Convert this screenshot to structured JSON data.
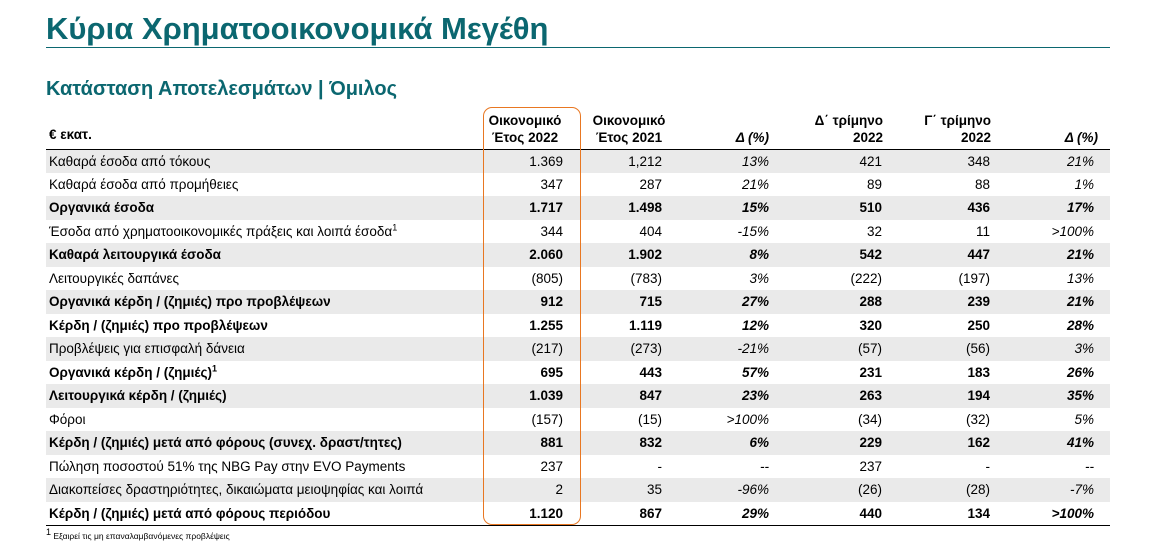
{
  "title": "Κύρια Χρηματοοικονομικά Μεγέθη",
  "subtitle": "Κατάσταση Αποτελεσμάτων | Όμιλος",
  "table": {
    "headers": {
      "label": "€ εκατ.",
      "fy2022_l1": "Οικονομικό",
      "fy2022_l2": "Έτος 2022",
      "fy2021_l1": "Οικονομικό",
      "fy2021_l2": "Έτος 2021",
      "delta_fy": "Δ (%)",
      "q4_l1": "Δ΄ τρίμηνο",
      "q4_l2": "2022",
      "q3_l1": "Γ΄ τρίμηνο",
      "q3_l2": "2022",
      "delta_q": "Δ (%)"
    },
    "rows": [
      {
        "label": "Καθαρά έσοδα από τόκους",
        "sup": "",
        "fy2022": "1.369",
        "fy2021": "1,212",
        "dfy": "13%",
        "q4": "421",
        "q3": "348",
        "dq": "21%"
      },
      {
        "label": "Καθαρά έσοδα από προμήθειες",
        "sup": "",
        "fy2022": "347",
        "fy2021": "287",
        "dfy": "21%",
        "q4": "89",
        "q3": "88",
        "dq": "1%"
      },
      {
        "label": "Οργανικά έσοδα",
        "sup": "",
        "fy2022": "1.717",
        "fy2021": "1.498",
        "dfy": "15%",
        "q4": "510",
        "q3": "436",
        "dq": "17%"
      },
      {
        "label": "Έσοδα από χρηματοοικονομικές πράξεις και λοιπά έσοδα",
        "sup": "1",
        "fy2022": "344",
        "fy2021": "404",
        "dfy": "-15%",
        "q4": "32",
        "q3": "11",
        "dq": ">100%"
      },
      {
        "label": "Καθαρά λειτουργικά έσοδα",
        "sup": "",
        "fy2022": "2.060",
        "fy2021": "1.902",
        "dfy": "8%",
        "q4": "542",
        "q3": "447",
        "dq": "21%"
      },
      {
        "label": "Λειτουργικές δαπάνες",
        "sup": "",
        "fy2022": "(805)",
        "fy2021": "(783)",
        "dfy": "3%",
        "q4": "(222)",
        "q3": "(197)",
        "dq": "13%"
      },
      {
        "label": "Οργανικά κέρδη / (ζημιές) προ προβλέψεων",
        "sup": "",
        "fy2022": "912",
        "fy2021": "715",
        "dfy": "27%",
        "q4": "288",
        "q3": "239",
        "dq": "21%"
      },
      {
        "label": "Κέρδη / (ζημιές) προ προβλέψεων",
        "sup": "",
        "fy2022": "1.255",
        "fy2021": "1.119",
        "dfy": "12%",
        "q4": "320",
        "q3": "250",
        "dq": "28%"
      },
      {
        "label": "Προβλέψεις για επισφαλή δάνεια",
        "sup": "",
        "fy2022": "(217)",
        "fy2021": "(273)",
        "dfy": "-21%",
        "q4": "(57)",
        "q3": "(56)",
        "dq": "3%"
      },
      {
        "label": "Οργανικά κέρδη / (ζημιές)",
        "sup": "1",
        "fy2022": "695",
        "fy2021": "443",
        "dfy": "57%",
        "q4": "231",
        "q3": "183",
        "dq": "26%"
      },
      {
        "label": "Λειτουργικά κέρδη / (ζημιές)",
        "sup": "",
        "fy2022": "1.039",
        "fy2021": "847",
        "dfy": "23%",
        "q4": "263",
        "q3": "194",
        "dq": "35%"
      },
      {
        "label": "Φόροι",
        "sup": "",
        "fy2022": "(157)",
        "fy2021": "(15)",
        "dfy": ">100%",
        "q4": "(34)",
        "q3": "(32)",
        "dq": "5%"
      },
      {
        "label": "Κέρδη / (ζημιές) μετά από φόρους (συνεχ. δραστ/τητες)",
        "sup": "",
        "fy2022": "881",
        "fy2021": "832",
        "dfy": "6%",
        "q4": "229",
        "q3": "162",
        "dq": "41%"
      },
      {
        "label": "Πώληση ποσοστού 51% της NBG Pay στην EVO Payments",
        "sup": "",
        "fy2022": "237",
        "fy2021": "-",
        "dfy": "--",
        "q4": "237",
        "q3": "-",
        "dq": "--"
      },
      {
        "label": "Διακοπείσες δραστηριότητες, δικαιώματα μειοψηφίας και λοιπά",
        "sup": "",
        "fy2022": "2",
        "fy2021": "35",
        "dfy": "-96%",
        "q4": "(26)",
        "q3": "(28)",
        "dq": "-7%"
      },
      {
        "label": "Κέρδη / (ζημιές) μετά από φόρους περιόδου",
        "sup": "",
        "fy2022": "1.120",
        "fy2021": "867",
        "dfy": "29%",
        "q4": "440",
        "q3": "134",
        "dq": ">100%"
      }
    ]
  },
  "footnote": {
    "sup": "1",
    "text": " Εξαιρεί τις μη επαναλαμβανόμενες προβλέψεις"
  },
  "colors": {
    "title": "#0b6770",
    "highlight": "#e87722",
    "shade": "#eaeaea"
  }
}
